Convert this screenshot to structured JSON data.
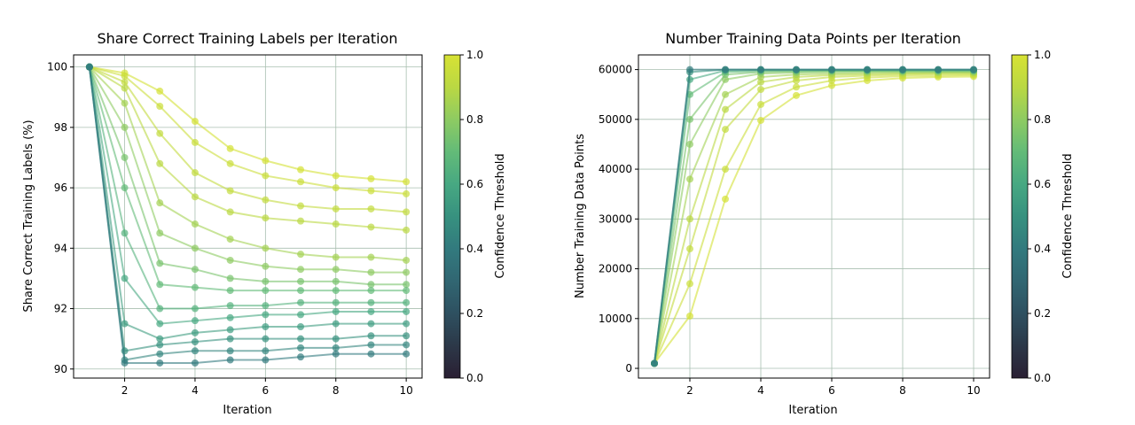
{
  "chart_data": [
    {
      "type": "line",
      "title": "Share Correct Training Labels per Iteration",
      "xlabel": "Iteration",
      "ylabel": "Share Correct Training Labels (%)",
      "xlim": [
        0.55,
        10.45
      ],
      "ylim": [
        89.7,
        100.4
      ],
      "xticks": [
        2,
        4,
        6,
        8,
        10
      ],
      "yticks": [
        90,
        92,
        94,
        96,
        98,
        100
      ],
      "grid": true,
      "x": [
        1,
        2,
        3,
        4,
        5,
        6,
        7,
        8,
        9,
        10
      ],
      "colorbar": {
        "label": "Confidence Threshold",
        "range": [
          0.0,
          1.0
        ],
        "ticks": [
          0.0,
          0.2,
          0.4,
          0.6,
          0.8,
          1.0
        ],
        "colormap": "viridis-partial"
      },
      "series": [
        {
          "threshold": 0.4,
          "values": [
            100,
            90.2,
            90.2,
            90.2,
            90.3,
            90.3,
            90.4,
            90.5,
            90.5,
            90.5
          ]
        },
        {
          "threshold": 0.45,
          "values": [
            100,
            90.3,
            90.5,
            90.6,
            90.6,
            90.6,
            90.7,
            90.7,
            90.8,
            90.8
          ]
        },
        {
          "threshold": 0.5,
          "values": [
            100,
            90.6,
            90.8,
            90.9,
            91.0,
            91.0,
            91.0,
            91.0,
            91.1,
            91.1
          ]
        },
        {
          "threshold": 0.55,
          "values": [
            100,
            91.5,
            91.0,
            91.2,
            91.3,
            91.4,
            91.4,
            91.5,
            91.5,
            91.5
          ]
        },
        {
          "threshold": 0.6,
          "values": [
            100,
            93.0,
            91.5,
            91.6,
            91.7,
            91.8,
            91.8,
            91.9,
            91.9,
            91.9
          ]
        },
        {
          "threshold": 0.65,
          "values": [
            100,
            94.5,
            92.0,
            92.0,
            92.1,
            92.1,
            92.2,
            92.2,
            92.2,
            92.2
          ]
        },
        {
          "threshold": 0.7,
          "values": [
            100,
            96.0,
            92.8,
            92.7,
            92.6,
            92.6,
            92.6,
            92.6,
            92.6,
            92.6
          ]
        },
        {
          "threshold": 0.75,
          "values": [
            100,
            97.0,
            93.5,
            93.3,
            93.0,
            92.9,
            92.9,
            92.9,
            92.8,
            92.8
          ]
        },
        {
          "threshold": 0.8,
          "values": [
            100,
            98.0,
            94.5,
            94.0,
            93.6,
            93.4,
            93.3,
            93.3,
            93.2,
            93.2
          ]
        },
        {
          "threshold": 0.85,
          "values": [
            100,
            98.8,
            95.5,
            94.8,
            94.3,
            94.0,
            93.8,
            93.7,
            93.7,
            93.6
          ]
        },
        {
          "threshold": 0.9,
          "values": [
            100,
            99.3,
            96.8,
            95.7,
            95.2,
            95.0,
            94.9,
            94.8,
            94.7,
            94.6
          ]
        },
        {
          "threshold": 0.93,
          "values": [
            100,
            99.5,
            97.8,
            96.5,
            95.9,
            95.6,
            95.4,
            95.3,
            95.3,
            95.2
          ]
        },
        {
          "threshold": 0.96,
          "values": [
            100,
            99.7,
            98.7,
            97.5,
            96.8,
            96.4,
            96.2,
            96.0,
            95.9,
            95.8
          ]
        },
        {
          "threshold": 0.99,
          "values": [
            100,
            99.8,
            99.2,
            98.2,
            97.3,
            96.9,
            96.6,
            96.4,
            96.3,
            96.2
          ]
        }
      ]
    },
    {
      "type": "line",
      "title": "Number Training Data Points per Iteration",
      "xlabel": "Iteration",
      "ylabel": "Number Training Data Points",
      "xlim": [
        0.55,
        10.45
      ],
      "ylim": [
        -1950,
        62950
      ],
      "xticks": [
        2,
        4,
        6,
        8,
        10
      ],
      "yticks": [
        0,
        10000,
        20000,
        30000,
        40000,
        50000,
        60000
      ],
      "grid": true,
      "x": [
        1,
        2,
        3,
        4,
        5,
        6,
        7,
        8,
        9,
        10
      ],
      "colorbar": {
        "label": "Confidence Threshold",
        "range": [
          0.0,
          1.0
        ],
        "ticks": [
          0.0,
          0.2,
          0.4,
          0.6,
          0.8,
          1.0
        ],
        "colormap": "viridis-partial"
      },
      "series": [
        {
          "threshold": 0.4,
          "values": [
            1000,
            60000,
            60000,
            60000,
            60000,
            60000,
            60000,
            60000,
            60000,
            60000
          ]
        },
        {
          "threshold": 0.5,
          "values": [
            1000,
            59500,
            60000,
            60000,
            60000,
            60000,
            60000,
            60000,
            60000,
            60000
          ]
        },
        {
          "threshold": 0.6,
          "values": [
            1000,
            58000,
            59800,
            59900,
            59900,
            59900,
            59900,
            59900,
            59900,
            59900
          ]
        },
        {
          "threshold": 0.7,
          "values": [
            1000,
            55000,
            59500,
            59700,
            59800,
            59800,
            59800,
            59800,
            59800,
            59800
          ]
        },
        {
          "threshold": 0.75,
          "values": [
            1000,
            50000,
            59000,
            59500,
            59600,
            59700,
            59700,
            59700,
            59700,
            59700
          ]
        },
        {
          "threshold": 0.8,
          "values": [
            1000,
            45000,
            58000,
            59200,
            59400,
            59500,
            59600,
            59600,
            59600,
            59600
          ]
        },
        {
          "threshold": 0.85,
          "values": [
            1000,
            38000,
            55000,
            58500,
            59000,
            59200,
            59300,
            59400,
            59400,
            59400
          ]
        },
        {
          "threshold": 0.9,
          "values": [
            1000,
            30000,
            52000,
            57500,
            58500,
            58900,
            59100,
            59200,
            59300,
            59300
          ]
        },
        {
          "threshold": 0.93,
          "values": [
            1000,
            24000,
            48000,
            56000,
            57800,
            58500,
            58800,
            59000,
            59100,
            59100
          ]
        },
        {
          "threshold": 0.96,
          "values": [
            1000,
            17000,
            40000,
            53000,
            56500,
            57800,
            58400,
            58700,
            58800,
            58900
          ]
        },
        {
          "threshold": 0.99,
          "values": [
            1000,
            10500,
            34000,
            49800,
            54800,
            56800,
            57800,
            58300,
            58500,
            58600
          ]
        }
      ]
    }
  ]
}
